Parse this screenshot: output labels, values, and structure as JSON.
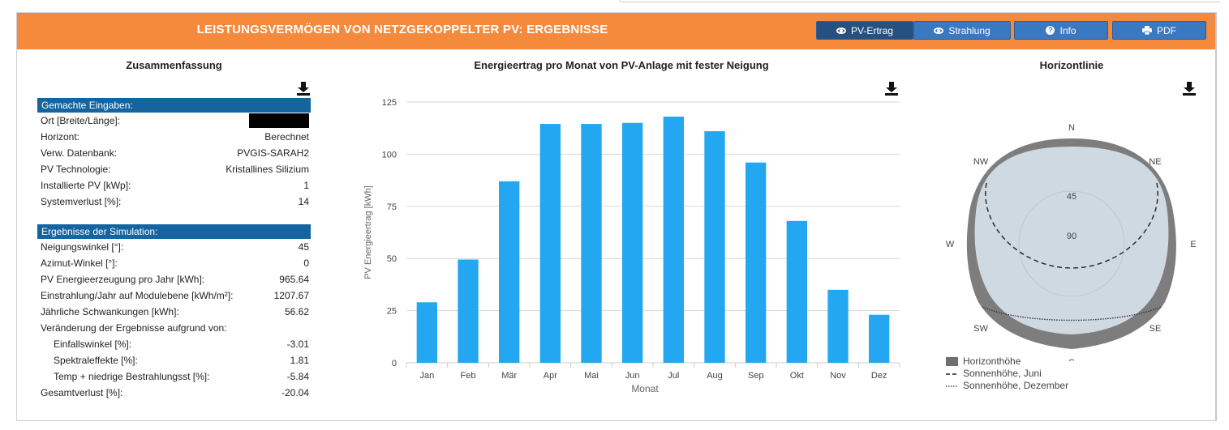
{
  "header": {
    "title": "LEISTUNGSVERMÖGEN VON NETZGEKOPPELTER PV: ERGEBNISSE",
    "buttons": {
      "pv": "PV-Ertrag",
      "rad": "Strahlung",
      "info": "Info",
      "pdf": "PDF"
    }
  },
  "summary": {
    "title": "Zusammenfassung",
    "inputs_header": "Gemachte Eingaben:",
    "inputs": [
      {
        "label": "Ort [Breite/Länge]:",
        "value": ""
      },
      {
        "label": "Horizont:",
        "value": "Berechnet"
      },
      {
        "label": "Verw. Datenbank:",
        "value": "PVGIS-SARAH2"
      },
      {
        "label": "PV Technologie:",
        "value": "Kristallines Silizium"
      },
      {
        "label": "Installierte PV [kWp]:",
        "value": "1"
      },
      {
        "label": "Systemverlust [%]:",
        "value": "14"
      }
    ],
    "results_header": "Ergebnisse der Simulation:",
    "results": [
      {
        "label": "Neigungswinkel [°]:",
        "value": "45"
      },
      {
        "label": "Azimut-Winkel [°]:",
        "value": "0"
      },
      {
        "label": "PV Energieerzeugung pro Jahr [kWh]:",
        "value": "965.64"
      },
      {
        "label": "Einstrahlung/Jahr auf Modulebene [kWh/m²]:",
        "value": "1207.67"
      },
      {
        "label": "Jährliche Schwankungen [kWh]:",
        "value": "56.62"
      },
      {
        "label": "Veränderung der Ergebnisse aufgrund von:",
        "value": ""
      },
      {
        "label": "Einfallswinkel [%]:",
        "value": "-3.01",
        "indent": true
      },
      {
        "label": "Spektraleffekte [%]:",
        "value": "1.81",
        "indent": true
      },
      {
        "label": "Temp + niedrige Bestrahlungsst [%]:",
        "value": "-5.84",
        "indent": true
      },
      {
        "label": "Gesamtverlust [%]:",
        "value": "-20.04"
      }
    ]
  },
  "chart_data": {
    "type": "bar",
    "title": "Energieertrag pro Monat von PV-Anlage mit fester Neigung",
    "xlabel": "Monat",
    "ylabel": "PV Energieertrag [kWh]",
    "ylim": [
      0,
      125
    ],
    "yticks": [
      0,
      25,
      50,
      75,
      100,
      125
    ],
    "categories": [
      "Jan",
      "Feb",
      "Mär",
      "Apr",
      "Mai",
      "Jun",
      "Jul",
      "Aug",
      "Sep",
      "Okt",
      "Nov",
      "Dez"
    ],
    "values": [
      29,
      49.5,
      87,
      114.5,
      114.5,
      115,
      118,
      111,
      96,
      68,
      35,
      23
    ],
    "color": "#22a7f0",
    "grid": true
  },
  "horizon": {
    "title": "Horizontlinie",
    "compass": [
      "N",
      "NE",
      "E",
      "SE",
      "S",
      "SW",
      "W",
      "NW"
    ],
    "rings": [
      "45",
      "90"
    ],
    "legend": [
      "Horizonthöhe",
      "Sonnenhöhe, Juni",
      "Sonnenhöhe, Dezember"
    ]
  },
  "colors": {
    "header": "#f68a3c",
    "bar": "#22a7f0",
    "section": "#13649f",
    "button": "#3a78c0"
  }
}
